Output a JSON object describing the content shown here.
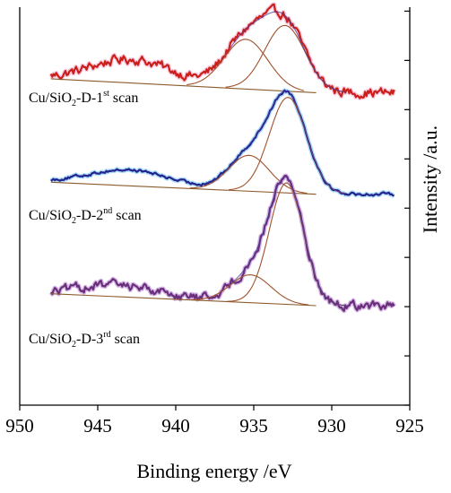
{
  "chart_data": {
    "type": "line",
    "title": "",
    "xlabel": "Binding energy /eV",
    "ylabel": "Intensity /a.u.",
    "xlim": [
      950,
      925
    ],
    "x_reversed": true,
    "x_ticks": [
      950,
      945,
      940,
      935,
      930,
      925
    ],
    "x_tick_labels": [
      "950",
      "945",
      "940",
      "935",
      "930",
      "925"
    ],
    "y_tick_count": 9,
    "grid": false,
    "legend": "none",
    "series": [
      {
        "label_parts": {
          "base": "Cu/SiO",
          "sub": "2",
          "mid": "-D-1",
          "sup": "st",
          "tail": " scan"
        },
        "offset": 0.82,
        "raw_color": "#cc1f1a",
        "raw_halo_color": "#f3a6c9",
        "fit_color": "#8a5a2b",
        "peak_color": "#a0522d",
        "envelope_color": "#4a3a9a",
        "baseline": [
          [
            948,
            0.0
          ],
          [
            931,
            -0.035
          ]
        ],
        "noise": 0.022,
        "peaks": [
          {
            "center": 935.5,
            "height": 0.125,
            "width": 1.4
          },
          {
            "center": 933.0,
            "height": 0.165,
            "width": 1.3
          }
        ],
        "satellite": {
          "center": 942.8,
          "height": 0.06,
          "width": 2.6
        },
        "raw_x_range": [
          948,
          926
        ]
      },
      {
        "label_parts": {
          "base": "Cu/SiO",
          "sub": "2",
          "mid": "-D-2",
          "sup": "nd",
          "tail": " scan"
        },
        "offset": 0.56,
        "raw_color": "#23238f",
        "raw_halo_color": "#6cc0f0",
        "fit_color": "#8a5a2b",
        "peak_color": "#a0522d",
        "envelope_color": "#4a3a9a",
        "baseline": [
          [
            948,
            0.0
          ],
          [
            931,
            -0.03
          ]
        ],
        "noise": 0.007,
        "peaks": [
          {
            "center": 935.3,
            "height": 0.09,
            "width": 1.3
          },
          {
            "center": 932.8,
            "height": 0.24,
            "width": 1.2
          }
        ],
        "satellite": {
          "center": 943.0,
          "height": 0.04,
          "width": 2.6
        },
        "raw_x_range": [
          948,
          926
        ]
      },
      {
        "label_parts": {
          "base": "Cu/SiO",
          "sub": "2",
          "mid": "-D-3",
          "sup": "rd",
          "tail": " scan"
        },
        "offset": 0.28,
        "raw_color": "#6a2f7a",
        "raw_halo_color": "#b07ad0",
        "fit_color": "#8a5a2b",
        "peak_color": "#a0522d",
        "envelope_color": "#4a3a9a",
        "baseline": [
          [
            948,
            0.0
          ],
          [
            931,
            -0.03
          ]
        ],
        "noise": 0.02,
        "peaks": [
          {
            "center": 935.2,
            "height": 0.07,
            "width": 1.3
          },
          {
            "center": 932.9,
            "height": 0.305,
            "width": 1.1
          }
        ],
        "satellite": {
          "center": 943.5,
          "height": 0.03,
          "width": 2.6
        },
        "raw_x_range": [
          948,
          926
        ]
      }
    ]
  }
}
